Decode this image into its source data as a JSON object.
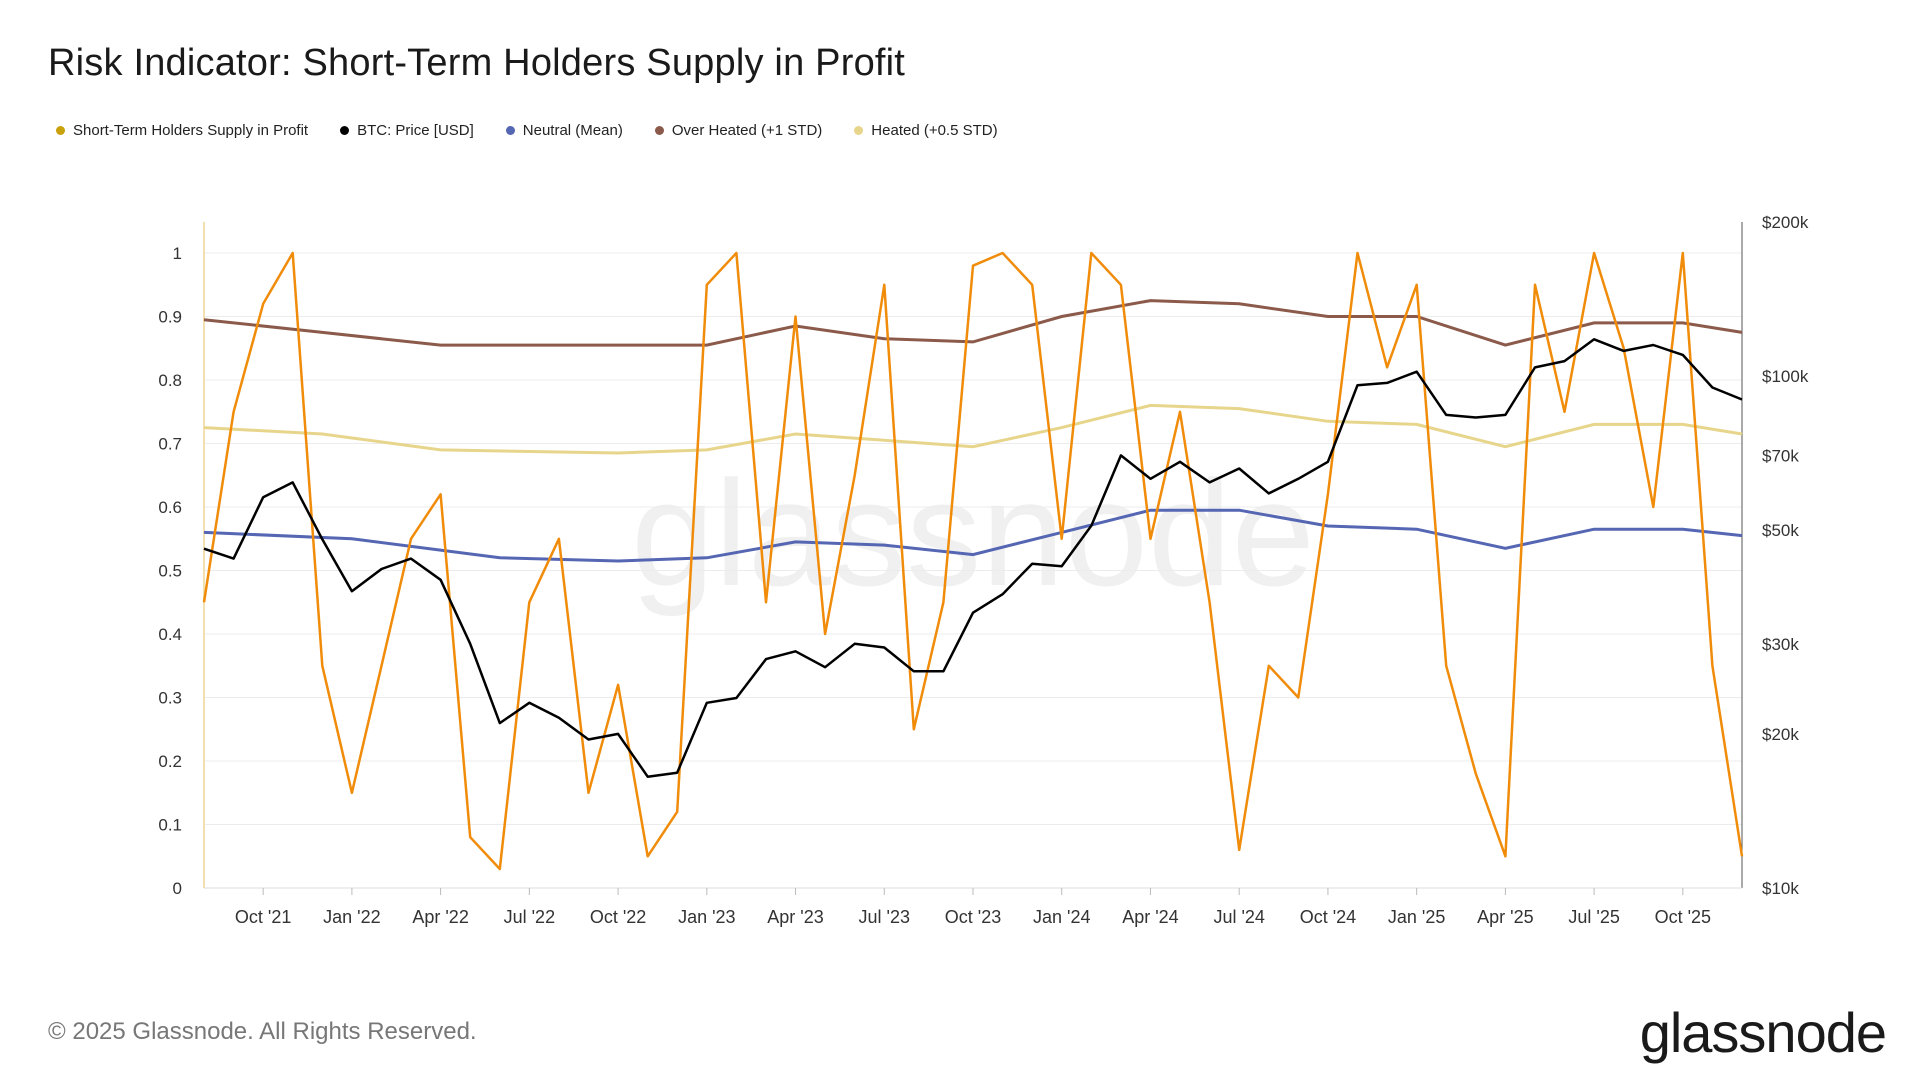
{
  "title": "Risk Indicator: Short-Term Holders Supply in Profit",
  "footer": "© 2025 Glassnode. All Rights Reserved.",
  "brand": "glassnode",
  "watermark": "glassnode",
  "legend": [
    {
      "label": "Short-Term Holders Supply in Profit",
      "color": "#c9a10a"
    },
    {
      "label": "BTC: Price [USD]",
      "color": "#000000"
    },
    {
      "label": "Neutral (Mean)",
      "color": "#5566b3"
    },
    {
      "label": "Over Heated (+1 STD)",
      "color": "#8b5a4a"
    },
    {
      "label": "Heated (+0.5 STD)",
      "color": "#e8d58c"
    }
  ],
  "chart_data": {
    "type": "line",
    "title": "Risk Indicator: Short-Term Holders Supply in Profit",
    "x_ticks": [
      "Oct '21",
      "Jan '22",
      "Apr '22",
      "Jul '22",
      "Oct '22",
      "Jan '23",
      "Apr '23",
      "Jul '23",
      "Oct '23",
      "Jan '24",
      "Apr '24",
      "Jul '24",
      "Oct '24",
      "Jan '25",
      "Apr '25",
      "Jul '25",
      "Oct '25"
    ],
    "y_left": {
      "ticks": [
        0,
        0.1,
        0.2,
        0.3,
        0.4,
        0.5,
        0.6,
        0.7,
        0.8,
        0.9,
        1
      ],
      "range": [
        0,
        1
      ]
    },
    "y_right": {
      "scale": "log",
      "range": [
        10000,
        200000
      ],
      "ticks": [
        {
          "v": 10000,
          "label": "$10k"
        },
        {
          "v": 20000,
          "label": "$20k"
        },
        {
          "v": 30000,
          "label": "$30k"
        },
        {
          "v": 50000,
          "label": "$50k"
        },
        {
          "v": 70000,
          "label": "$70k"
        },
        {
          "v": 100000,
          "label": "$100k"
        },
        {
          "v": 200000,
          "label": "$200k"
        }
      ]
    },
    "grid": true,
    "legend_position": "top-left",
    "x_range": [
      "2021-08",
      "2025-12"
    ],
    "series": [
      {
        "name": "Short-Term Holders Supply in Profit",
        "axis": "left",
        "color": "#f08c0a",
        "x": [
          "2021-08",
          "2021-09",
          "2021-10",
          "2021-11",
          "2021-12",
          "2022-01",
          "2022-02",
          "2022-03",
          "2022-04",
          "2022-05",
          "2022-06",
          "2022-07",
          "2022-08",
          "2022-09",
          "2022-10",
          "2022-11",
          "2022-12",
          "2023-01",
          "2023-02",
          "2023-03",
          "2023-04",
          "2023-05",
          "2023-06",
          "2023-07",
          "2023-08",
          "2023-09",
          "2023-10",
          "2023-11",
          "2023-12",
          "2024-01",
          "2024-02",
          "2024-03",
          "2024-04",
          "2024-05",
          "2024-06",
          "2024-07",
          "2024-08",
          "2024-09",
          "2024-10",
          "2024-11",
          "2024-12",
          "2025-01",
          "2025-02",
          "2025-03",
          "2025-04",
          "2025-05",
          "2025-06",
          "2025-07",
          "2025-08",
          "2025-09",
          "2025-10",
          "2025-11",
          "2025-12"
        ],
        "values": [
          0.45,
          0.75,
          0.92,
          1.0,
          0.35,
          0.15,
          0.35,
          0.55,
          0.62,
          0.08,
          0.03,
          0.45,
          0.55,
          0.15,
          0.32,
          0.05,
          0.12,
          0.95,
          1.0,
          0.45,
          0.9,
          0.4,
          0.65,
          0.95,
          0.25,
          0.45,
          0.98,
          1.0,
          0.95,
          0.55,
          1.0,
          0.95,
          0.55,
          0.75,
          0.45,
          0.06,
          0.35,
          0.3,
          0.62,
          1.0,
          0.82,
          0.95,
          0.35,
          0.18,
          0.05,
          0.95,
          0.75,
          1.0,
          0.85,
          0.6,
          1.0,
          0.35,
          0.05
        ]
      },
      {
        "name": "BTC: Price [USD]",
        "axis": "right",
        "color": "#000000",
        "x": [
          "2021-08",
          "2021-09",
          "2021-10",
          "2021-11",
          "2021-12",
          "2022-01",
          "2022-02",
          "2022-03",
          "2022-04",
          "2022-05",
          "2022-06",
          "2022-07",
          "2022-08",
          "2022-09",
          "2022-10",
          "2022-11",
          "2022-12",
          "2023-01",
          "2023-02",
          "2023-03",
          "2023-04",
          "2023-05",
          "2023-06",
          "2023-07",
          "2023-08",
          "2023-09",
          "2023-10",
          "2023-11",
          "2023-12",
          "2024-01",
          "2024-02",
          "2024-03",
          "2024-04",
          "2024-05",
          "2024-06",
          "2024-07",
          "2024-08",
          "2024-09",
          "2024-10",
          "2024-11",
          "2024-12",
          "2025-01",
          "2025-02",
          "2025-03",
          "2025-04",
          "2025-05",
          "2025-06",
          "2025-07",
          "2025-08",
          "2025-09",
          "2025-10",
          "2025-11",
          "2025-12"
        ],
        "values": [
          46000,
          44000,
          58000,
          62000,
          48000,
          38000,
          42000,
          44000,
          40000,
          30000,
          21000,
          23000,
          21500,
          19500,
          20000,
          16500,
          16800,
          23000,
          23500,
          28000,
          29000,
          27000,
          30000,
          29500,
          26500,
          26500,
          34500,
          37500,
          43000,
          42500,
          51000,
          70000,
          63000,
          68000,
          62000,
          66000,
          59000,
          63000,
          68000,
          96000,
          97000,
          102000,
          84000,
          83000,
          84000,
          104000,
          107000,
          118000,
          112000,
          115000,
          110000,
          95000,
          90000
        ]
      },
      {
        "name": "Neutral (Mean)",
        "axis": "left",
        "color": "#5566b3",
        "x": [
          "2021-08",
          "2022-01",
          "2022-06",
          "2022-10",
          "2023-01",
          "2023-04",
          "2023-07",
          "2023-10",
          "2024-01",
          "2024-04",
          "2024-07",
          "2024-10",
          "2025-01",
          "2025-04",
          "2025-07",
          "2025-10",
          "2025-12"
        ],
        "values": [
          0.56,
          0.55,
          0.52,
          0.515,
          0.52,
          0.545,
          0.54,
          0.525,
          0.56,
          0.595,
          0.595,
          0.57,
          0.565,
          0.535,
          0.565,
          0.565,
          0.555
        ]
      },
      {
        "name": "Over Heated (+1 STD)",
        "axis": "left",
        "color": "#8b5a4a",
        "x": [
          "2021-08",
          "2021-12",
          "2022-04",
          "2022-10",
          "2023-01",
          "2023-04",
          "2023-07",
          "2023-10",
          "2024-01",
          "2024-04",
          "2024-07",
          "2024-10",
          "2025-01",
          "2025-04",
          "2025-07",
          "2025-10",
          "2025-12"
        ],
        "values": [
          0.895,
          0.875,
          0.855,
          0.855,
          0.855,
          0.885,
          0.865,
          0.86,
          0.9,
          0.925,
          0.92,
          0.9,
          0.9,
          0.855,
          0.89,
          0.89,
          0.875
        ]
      },
      {
        "name": "Heated (+0.5 STD)",
        "axis": "left",
        "color": "#e8d58c",
        "x": [
          "2021-08",
          "2021-12",
          "2022-04",
          "2022-10",
          "2023-01",
          "2023-04",
          "2023-07",
          "2023-10",
          "2024-01",
          "2024-04",
          "2024-07",
          "2024-10",
          "2025-01",
          "2025-04",
          "2025-07",
          "2025-10",
          "2025-12"
        ],
        "values": [
          0.725,
          0.715,
          0.69,
          0.685,
          0.69,
          0.715,
          0.705,
          0.695,
          0.725,
          0.76,
          0.755,
          0.735,
          0.73,
          0.695,
          0.73,
          0.73,
          0.715
        ]
      }
    ]
  }
}
